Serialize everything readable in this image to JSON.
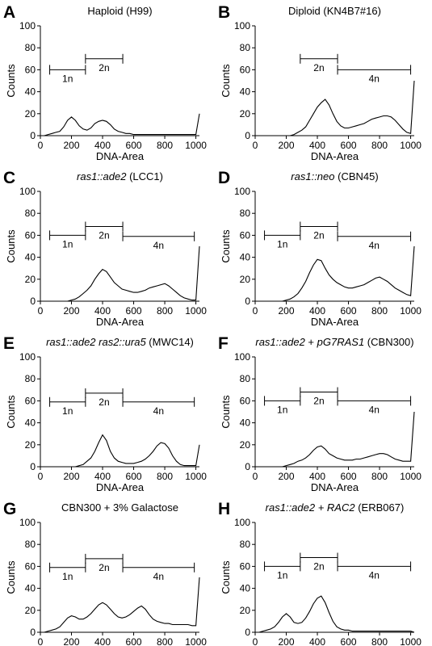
{
  "chart_data": [
    {
      "type": "line",
      "panel": "A",
      "title": [
        {
          "text": "Haploid (H99)",
          "italic": false
        }
      ],
      "xlabel": "DNA-Area",
      "ylabel": "Counts",
      "color": "#000000",
      "x": [
        0,
        25,
        50,
        75,
        100,
        125,
        150,
        175,
        200,
        225,
        250,
        275,
        300,
        325,
        350,
        375,
        400,
        425,
        450,
        475,
        500,
        525,
        550,
        575,
        600,
        625,
        650,
        675,
        700,
        725,
        750,
        775,
        800,
        825,
        850,
        875,
        900,
        925,
        950,
        975,
        1000,
        1023
      ],
      "values": [
        0,
        0,
        1,
        2,
        3,
        4,
        8,
        14,
        17,
        14,
        9,
        6,
        5,
        7,
        11,
        13,
        14,
        13,
        10,
        6,
        4,
        3,
        2,
        2,
        1,
        1,
        1,
        1,
        1,
        1,
        1,
        1,
        1,
        1,
        1,
        1,
        1,
        1,
        1,
        1,
        1,
        20
      ],
      "xlim": [
        0,
        1023
      ],
      "ylim": [
        0,
        100
      ],
      "xticks": [
        0,
        200,
        400,
        600,
        800,
        1000
      ],
      "yticks": [
        0,
        20,
        40,
        60,
        80,
        100
      ],
      "gates": [
        {
          "label": "1n",
          "range": [
            60,
            290
          ],
          "y": 60
        },
        {
          "label": "2n",
          "range": [
            290,
            530
          ],
          "y": 70
        }
      ]
    },
    {
      "type": "line",
      "panel": "B",
      "title": [
        {
          "text": "Diploid (KN4B7#16)",
          "italic": false
        }
      ],
      "xlabel": "DNA-Area",
      "ylabel": "Counts",
      "color": "#000000",
      "x": [
        0,
        25,
        50,
        75,
        100,
        125,
        150,
        175,
        200,
        225,
        250,
        275,
        300,
        325,
        350,
        375,
        400,
        425,
        450,
        475,
        500,
        525,
        550,
        575,
        600,
        625,
        650,
        675,
        700,
        725,
        750,
        775,
        800,
        825,
        850,
        875,
        900,
        925,
        950,
        975,
        1000,
        1023
      ],
      "values": [
        0,
        0,
        0,
        0,
        0,
        0,
        0,
        0,
        0,
        0,
        1,
        3,
        5,
        8,
        14,
        20,
        26,
        30,
        33,
        28,
        20,
        13,
        9,
        7,
        7,
        8,
        9,
        10,
        11,
        13,
        15,
        16,
        17,
        18,
        18,
        17,
        14,
        10,
        6,
        3,
        2,
        50
      ],
      "xlim": [
        0,
        1023
      ],
      "ylim": [
        0,
        100
      ],
      "xticks": [
        0,
        200,
        400,
        600,
        800,
        1000
      ],
      "yticks": [
        0,
        20,
        40,
        60,
        80,
        100
      ],
      "gates": [
        {
          "label": "2n",
          "range": [
            290,
            530
          ],
          "y": 70
        },
        {
          "label": "4n",
          "range": [
            530,
            1000
          ],
          "y": 60
        }
      ]
    },
    {
      "type": "line",
      "panel": "C",
      "title": [
        {
          "text": "ras1::ade2",
          "italic": true
        },
        {
          "text": " (LCC1)",
          "italic": false
        }
      ],
      "xlabel": "DNA-Area",
      "ylabel": "Counts",
      "color": "#000000",
      "x": [
        0,
        25,
        50,
        75,
        100,
        125,
        150,
        175,
        200,
        225,
        250,
        275,
        300,
        325,
        350,
        375,
        400,
        425,
        450,
        475,
        500,
        525,
        550,
        575,
        600,
        625,
        650,
        675,
        700,
        725,
        750,
        775,
        800,
        825,
        850,
        875,
        900,
        925,
        950,
        975,
        1000,
        1023
      ],
      "values": [
        0,
        0,
        0,
        0,
        0,
        0,
        0,
        0,
        1,
        2,
        4,
        7,
        10,
        14,
        20,
        25,
        29,
        27,
        22,
        17,
        14,
        11,
        10,
        9,
        8,
        8,
        9,
        10,
        12,
        13,
        14,
        15,
        16,
        14,
        11,
        8,
        5,
        3,
        2,
        1,
        1,
        50
      ],
      "xlim": [
        0,
        1023
      ],
      "ylim": [
        0,
        100
      ],
      "xticks": [
        0,
        200,
        400,
        600,
        800,
        1000
      ],
      "yticks": [
        0,
        20,
        40,
        60,
        80,
        100
      ],
      "gates": [
        {
          "label": "1n",
          "range": [
            60,
            290
          ],
          "y": 60
        },
        {
          "label": "2n",
          "range": [
            290,
            530
          ],
          "y": 68
        },
        {
          "label": "4n",
          "range": [
            530,
            990
          ],
          "y": 59
        }
      ]
    },
    {
      "type": "line",
      "panel": "D",
      "title": [
        {
          "text": "ras1::neo",
          "italic": true
        },
        {
          "text": " (CBN45)",
          "italic": false
        }
      ],
      "xlabel": "DNA-Area",
      "ylabel": "Counts",
      "color": "#000000",
      "x": [
        0,
        25,
        50,
        75,
        100,
        125,
        150,
        175,
        200,
        225,
        250,
        275,
        300,
        325,
        350,
        375,
        400,
        425,
        450,
        475,
        500,
        525,
        550,
        575,
        600,
        625,
        650,
        675,
        700,
        725,
        750,
        775,
        800,
        825,
        850,
        875,
        900,
        925,
        950,
        975,
        1000,
        1023
      ],
      "values": [
        0,
        0,
        0,
        0,
        0,
        0,
        0,
        0,
        1,
        2,
        4,
        7,
        12,
        18,
        26,
        33,
        38,
        37,
        30,
        24,
        20,
        17,
        15,
        13,
        12,
        12,
        13,
        14,
        15,
        17,
        19,
        21,
        22,
        20,
        18,
        15,
        12,
        10,
        8,
        6,
        5,
        50
      ],
      "xlim": [
        0,
        1023
      ],
      "ylim": [
        0,
        100
      ],
      "xticks": [
        0,
        200,
        400,
        600,
        800,
        1000
      ],
      "yticks": [
        0,
        20,
        40,
        60,
        80,
        100
      ],
      "gates": [
        {
          "label": "1n",
          "range": [
            60,
            290
          ],
          "y": 60
        },
        {
          "label": "2n",
          "range": [
            290,
            530
          ],
          "y": 68
        },
        {
          "label": "4n",
          "range": [
            530,
            1000
          ],
          "y": 59
        }
      ]
    },
    {
      "type": "line",
      "panel": "E",
      "title": [
        {
          "text": "ras1::ade2 ras2::ura5",
          "italic": true
        },
        {
          "text": " (MWC14)",
          "italic": false
        }
      ],
      "xlabel": "DNA-Area",
      "ylabel": "Counts",
      "color": "#000000",
      "x": [
        0,
        25,
        50,
        75,
        100,
        125,
        150,
        175,
        200,
        225,
        250,
        275,
        300,
        325,
        350,
        375,
        400,
        425,
        450,
        475,
        500,
        525,
        550,
        575,
        600,
        625,
        650,
        675,
        700,
        725,
        750,
        775,
        800,
        825,
        850,
        875,
        900,
        925,
        950,
        975,
        1000,
        1023
      ],
      "values": [
        0,
        0,
        0,
        0,
        0,
        0,
        0,
        0,
        0,
        0,
        1,
        2,
        5,
        8,
        14,
        22,
        29,
        24,
        14,
        8,
        5,
        4,
        3,
        3,
        3,
        4,
        5,
        7,
        10,
        14,
        19,
        22,
        21,
        17,
        10,
        5,
        2,
        1,
        1,
        1,
        1,
        20
      ],
      "xlim": [
        0,
        1023
      ],
      "ylim": [
        0,
        100
      ],
      "xticks": [
        0,
        200,
        400,
        600,
        800,
        1000
      ],
      "yticks": [
        0,
        20,
        40,
        60,
        80,
        100
      ],
      "gates": [
        {
          "label": "1n",
          "range": [
            60,
            290
          ],
          "y": 59
        },
        {
          "label": "2n",
          "range": [
            290,
            530
          ],
          "y": 67
        },
        {
          "label": "4n",
          "range": [
            530,
            990
          ],
          "y": 59
        }
      ]
    },
    {
      "type": "line",
      "panel": "F",
      "title": [
        {
          "text": "ras1::ade2",
          "italic": true
        },
        {
          "text": " + ",
          "italic": false
        },
        {
          "text": "pG7RAS1",
          "italic": true
        },
        {
          "text": " (CBN300)",
          "italic": false
        }
      ],
      "xlabel": "DNA-Area",
      "ylabel": "Counts",
      "color": "#000000",
      "x": [
        0,
        25,
        50,
        75,
        100,
        125,
        150,
        175,
        200,
        225,
        250,
        275,
        300,
        325,
        350,
        375,
        400,
        425,
        450,
        475,
        500,
        525,
        550,
        575,
        600,
        625,
        650,
        675,
        700,
        725,
        750,
        775,
        800,
        825,
        850,
        875,
        900,
        925,
        950,
        975,
        1000,
        1023
      ],
      "values": [
        0,
        0,
        0,
        0,
        0,
        0,
        0,
        0,
        1,
        2,
        3,
        5,
        6,
        8,
        11,
        15,
        18,
        19,
        16,
        12,
        10,
        8,
        7,
        6,
        6,
        6,
        7,
        7,
        8,
        9,
        10,
        11,
        12,
        12,
        11,
        9,
        7,
        6,
        5,
        5,
        5,
        50
      ],
      "xlim": [
        0,
        1023
      ],
      "ylim": [
        0,
        100
      ],
      "xticks": [
        0,
        200,
        400,
        600,
        800,
        1000
      ],
      "yticks": [
        0,
        20,
        40,
        60,
        80,
        100
      ],
      "gates": [
        {
          "label": "1n",
          "range": [
            60,
            290
          ],
          "y": 60
        },
        {
          "label": "2n",
          "range": [
            290,
            530
          ],
          "y": 68
        },
        {
          "label": "4n",
          "range": [
            530,
            1000
          ],
          "y": 60
        }
      ]
    },
    {
      "type": "line",
      "panel": "G",
      "title": [
        {
          "text": "CBN300 + 3% Galactose",
          "italic": false
        }
      ],
      "xlabel": "DNA-Area",
      "ylabel": "Counts",
      "color": "#000000",
      "x": [
        0,
        25,
        50,
        75,
        100,
        125,
        150,
        175,
        200,
        225,
        250,
        275,
        300,
        325,
        350,
        375,
        400,
        425,
        450,
        475,
        500,
        525,
        550,
        575,
        600,
        625,
        650,
        675,
        700,
        725,
        750,
        775,
        800,
        825,
        850,
        875,
        900,
        925,
        950,
        975,
        1000,
        1023
      ],
      "values": [
        0,
        0,
        1,
        2,
        3,
        5,
        9,
        13,
        15,
        14,
        12,
        12,
        14,
        17,
        21,
        25,
        27,
        25,
        21,
        17,
        14,
        13,
        14,
        16,
        19,
        22,
        24,
        21,
        16,
        12,
        10,
        9,
        8,
        8,
        7,
        7,
        7,
        7,
        7,
        6,
        6,
        50
      ],
      "xlim": [
        0,
        1023
      ],
      "ylim": [
        0,
        100
      ],
      "xticks": [
        0,
        200,
        400,
        600,
        800,
        1000
      ],
      "yticks": [
        0,
        20,
        40,
        60,
        80,
        100
      ],
      "gates": [
        {
          "label": "1n",
          "range": [
            60,
            290
          ],
          "y": 59
        },
        {
          "label": "2n",
          "range": [
            290,
            530
          ],
          "y": 67
        },
        {
          "label": "4n",
          "range": [
            530,
            990
          ],
          "y": 59
        }
      ]
    },
    {
      "type": "line",
      "panel": "H",
      "title": [
        {
          "text": "ras1::ade2 + RAC2",
          "italic": true
        },
        {
          "text": " (ERB067)",
          "italic": false
        }
      ],
      "xlabel": "DNA-Area",
      "ylabel": "Counts",
      "color": "#000000",
      "x": [
        0,
        25,
        50,
        75,
        100,
        125,
        150,
        175,
        200,
        225,
        250,
        275,
        300,
        325,
        350,
        375,
        400,
        425,
        450,
        475,
        500,
        525,
        550,
        575,
        600,
        625,
        650,
        675,
        700,
        725,
        750,
        775,
        800,
        825,
        850,
        875,
        900,
        925,
        950,
        975,
        1000,
        1023
      ],
      "values": [
        0,
        0,
        1,
        2,
        3,
        5,
        9,
        14,
        17,
        14,
        9,
        8,
        9,
        13,
        19,
        26,
        31,
        33,
        27,
        18,
        10,
        5,
        3,
        2,
        2,
        1,
        1,
        1,
        1,
        1,
        1,
        1,
        1,
        1,
        1,
        1,
        1,
        1,
        1,
        1,
        1,
        0
      ],
      "xlim": [
        0,
        1023
      ],
      "ylim": [
        0,
        100
      ],
      "xticks": [
        0,
        200,
        400,
        600,
        800,
        1000
      ],
      "yticks": [
        0,
        20,
        40,
        60,
        80,
        100
      ],
      "gates": [
        {
          "label": "1n",
          "range": [
            60,
            290
          ],
          "y": 60
        },
        {
          "label": "2n",
          "range": [
            290,
            530
          ],
          "y": 68
        },
        {
          "label": "4n",
          "range": [
            530,
            1000
          ],
          "y": 60
        }
      ]
    }
  ]
}
